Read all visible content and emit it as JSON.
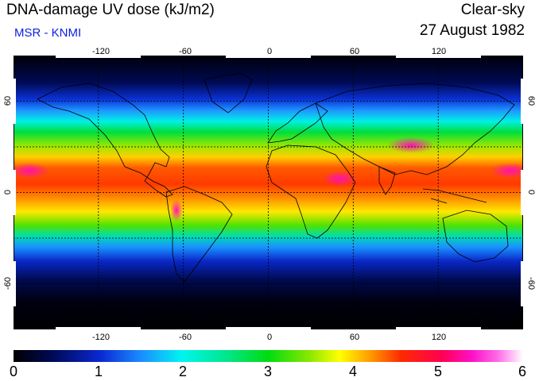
{
  "header": {
    "title": "DNA-damage UV dose (kJ/m2)",
    "source": "MSR - KNMI",
    "sky_condition": "Clear-sky",
    "date": "27 August 1982"
  },
  "map": {
    "longitude_ticks": [
      "-120",
      "-60",
      "0",
      "60",
      "120"
    ],
    "latitude_ticks": [
      "60",
      "0",
      "-60"
    ],
    "grid": "dashed",
    "projection": "equirectangular",
    "longitude_range": [
      -180,
      180
    ],
    "latitude_range": [
      -90,
      90
    ]
  },
  "colorbar": {
    "ticks": [
      "0",
      "1",
      "2",
      "3",
      "4",
      "5",
      "6"
    ],
    "range": [
      0,
      6
    ],
    "colors": [
      "#000000",
      "#0a28d2",
      "#00f5f0",
      "#00dc10",
      "#ffff00",
      "#ff2a00",
      "#ff10c8",
      "#ffffff"
    ]
  }
}
